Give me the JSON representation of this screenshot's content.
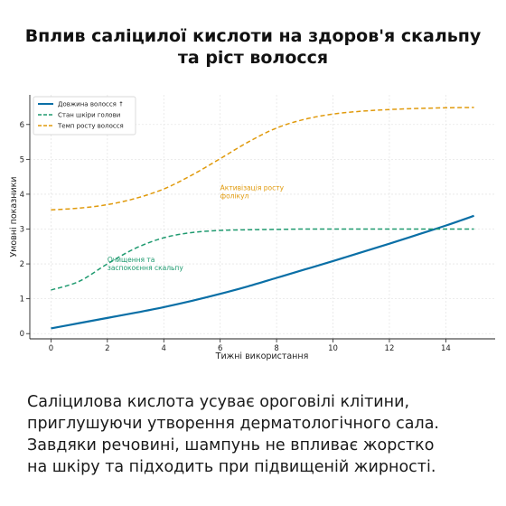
{
  "page": {
    "title_lines": [
      "Вплив саліцилої кислоти на здоров'я скальпу",
      "та ріст волосся"
    ],
    "caption_lines": [
      "Саліцилова кислота усуває ороговілі клітини,",
      "приглушуючи утворення дерматологічного сала.",
      "Завдяки речовині, шампунь не впливає жорстко",
      "на шкіру та підходить при підвищеній жирності."
    ]
  },
  "chart_data": {
    "type": "line",
    "title": "",
    "xlabel": "Тижні використання",
    "ylabel": "Умовні показники",
    "xlim": [
      -0.75,
      15.75
    ],
    "ylim": [
      -0.15,
      6.85
    ],
    "xticks": [
      0,
      2,
      4,
      6,
      8,
      10,
      12,
      14
    ],
    "yticks": [
      0,
      1,
      2,
      3,
      4,
      5,
      6
    ],
    "grid": true,
    "legend_position": "top-left",
    "x": [
      0,
      1,
      2,
      3,
      4,
      5,
      6,
      7,
      8,
      9,
      10,
      11,
      12,
      13,
      14,
      15
    ],
    "series": [
      {
        "name": "Довжина волосся ↑",
        "color": "#0a6fa6",
        "dash": "solid",
        "values": [
          0.15,
          0.3,
          0.45,
          0.6,
          0.76,
          0.94,
          1.14,
          1.36,
          1.6,
          1.84,
          2.08,
          2.33,
          2.58,
          2.84,
          3.1,
          3.38
        ]
      },
      {
        "name": "Стан шкіри голови",
        "color": "#1e9a6f",
        "dash": "dashed",
        "values": [
          1.25,
          1.5,
          2.0,
          2.45,
          2.75,
          2.9,
          2.96,
          2.98,
          2.99,
          3.0,
          3.0,
          3.0,
          3.0,
          3.0,
          3.0,
          3.0
        ]
      },
      {
        "name": "Темп росту волосся",
        "color": "#e09a0c",
        "dash": "dashed",
        "values": [
          3.55,
          3.6,
          3.7,
          3.88,
          4.15,
          4.55,
          5.02,
          5.5,
          5.9,
          6.15,
          6.3,
          6.38,
          6.43,
          6.46,
          6.48,
          6.49
        ]
      }
    ],
    "annotations": [
      {
        "text_lines": [
          "Активізація росту",
          "фолікул"
        ],
        "x": 6,
        "y": 4.12,
        "color": "#e09a0c"
      },
      {
        "text_lines": [
          "Очищення та",
          "заспокоєння скальпу"
        ],
        "x": 2,
        "y": 2.05,
        "color": "#1e9a6f"
      }
    ]
  }
}
